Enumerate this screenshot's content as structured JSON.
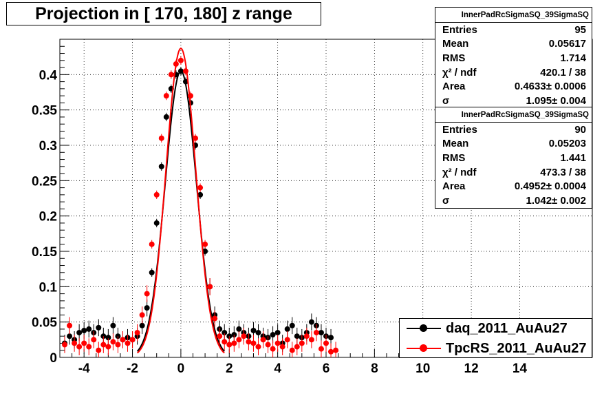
{
  "chart_data": {
    "type": "scatter",
    "title": "Projection in [ 170, 180] z range",
    "xlabel": "",
    "ylabel": "",
    "xlim": [
      -5,
      17
    ],
    "ylim": [
      0,
      0.45
    ],
    "x_ticks": [
      -4,
      -2,
      0,
      2,
      4,
      6,
      8,
      10,
      12,
      14
    ],
    "x_tick_labels": [
      "-4",
      "-2",
      "0",
      "2",
      "4",
      "6",
      "8",
      "10",
      "12",
      "14"
    ],
    "y_ticks": [
      0,
      0.05,
      0.1,
      0.15,
      0.2,
      0.25,
      0.3,
      0.35,
      0.4
    ],
    "y_tick_labels": [
      "0",
      "0.05",
      "0.1",
      "0.15",
      "0.2",
      "0.25",
      "0.3",
      "0.35",
      "0.4"
    ],
    "grid": true,
    "legend_position": "bottom-right",
    "series": [
      {
        "name": "daq_2011_AuAu27",
        "color": "#000000",
        "fit_sigma": 1.095,
        "fit_amplitude": 0.405,
        "x": [
          -4.8,
          -4.6,
          -4.4,
          -4.2,
          -4.0,
          -3.8,
          -3.6,
          -3.4,
          -3.2,
          -3.0,
          -2.8,
          -2.6,
          -2.4,
          -2.2,
          -2.0,
          -1.8,
          -1.6,
          -1.4,
          -1.2,
          -1.0,
          -0.8,
          -0.6,
          -0.4,
          -0.2,
          0.0,
          0.2,
          0.4,
          0.6,
          0.8,
          1.0,
          1.2,
          1.4,
          1.6,
          1.8,
          2.0,
          2.2,
          2.4,
          2.6,
          2.8,
          3.0,
          3.2,
          3.4,
          3.6,
          3.8,
          4.0,
          4.2,
          4.4,
          4.6,
          4.8,
          5.0,
          5.2,
          5.4,
          5.6,
          5.8,
          6.0,
          6.2
        ],
        "y": [
          0.02,
          0.03,
          0.025,
          0.035,
          0.038,
          0.04,
          0.035,
          0.042,
          0.03,
          0.028,
          0.045,
          0.03,
          0.025,
          0.028,
          0.025,
          0.03,
          0.045,
          0.07,
          0.12,
          0.19,
          0.27,
          0.34,
          0.38,
          0.4,
          0.405,
          0.39,
          0.36,
          0.3,
          0.23,
          0.15,
          0.1,
          0.06,
          0.04,
          0.035,
          0.03,
          0.032,
          0.04,
          0.035,
          0.03,
          0.038,
          0.035,
          0.03,
          0.028,
          0.032,
          0.035,
          0.02,
          0.04,
          0.045,
          0.03,
          0.028,
          0.035,
          0.05,
          0.045,
          0.035,
          0.03,
          0.028
        ]
      },
      {
        "name": "TpcRS_2011_AuAu27",
        "color": "#ff0000",
        "fit_sigma": 1.042,
        "fit_amplitude": 0.437,
        "x": [
          -4.8,
          -4.6,
          -4.4,
          -4.2,
          -4.0,
          -3.8,
          -3.6,
          -3.4,
          -3.2,
          -3.0,
          -2.8,
          -2.6,
          -2.4,
          -2.2,
          -2.0,
          -1.8,
          -1.6,
          -1.4,
          -1.2,
          -1.0,
          -0.8,
          -0.6,
          -0.4,
          -0.2,
          0.0,
          0.2,
          0.4,
          0.6,
          0.8,
          1.0,
          1.2,
          1.4,
          1.6,
          1.8,
          2.0,
          2.2,
          2.4,
          2.6,
          2.8,
          3.0,
          3.2,
          3.4,
          3.6,
          3.8,
          4.0,
          4.2,
          4.4,
          4.6,
          4.8,
          5.0,
          5.2,
          5.4,
          5.6,
          5.8,
          6.0,
          6.2,
          6.4
        ],
        "y": [
          0.018,
          0.045,
          0.02,
          0.015,
          0.02,
          0.015,
          0.025,
          0.01,
          0.018,
          0.015,
          0.022,
          0.018,
          0.025,
          0.02,
          0.025,
          0.035,
          0.06,
          0.09,
          0.16,
          0.23,
          0.31,
          0.37,
          0.4,
          0.415,
          0.42,
          0.405,
          0.37,
          0.31,
          0.24,
          0.16,
          0.1,
          0.055,
          0.03,
          0.022,
          0.018,
          0.02,
          0.025,
          0.03,
          0.022,
          0.02,
          0.015,
          0.025,
          0.018,
          0.012,
          0.02,
          0.015,
          0.025,
          0.01,
          0.015,
          0.02,
          0.03,
          0.025,
          0.035,
          0.012,
          0.02,
          0.008,
          0.01
        ]
      }
    ]
  },
  "stats_boxes": [
    {
      "header": "InnerPadRcSigmaSQ_39SigmaSQ",
      "rows": [
        {
          "label": "Entries",
          "value": "95"
        },
        {
          "label": "Mean",
          "value": "0.05617"
        },
        {
          "label": "RMS",
          "value": "1.714"
        },
        {
          "label": "χ² / ndf",
          "value": "420.1 / 38"
        },
        {
          "label": "Area",
          "value": "0.4633± 0.0006"
        },
        {
          "label": "σ",
          "value": "1.095± 0.004"
        }
      ]
    },
    {
      "header": "InnerPadRcSigmaSQ_39SigmaSQ",
      "rows": [
        {
          "label": "Entries",
          "value": "90"
        },
        {
          "label": "Mean",
          "value": "0.05203"
        },
        {
          "label": "RMS",
          "value": "1.441"
        },
        {
          "label": "χ² / ndf",
          "value": "473.3 / 38"
        },
        {
          "label": "Area",
          "value": "0.4952± 0.0004"
        },
        {
          "label": "σ",
          "value": "1.042± 0.002"
        }
      ]
    }
  ],
  "legend": {
    "items": [
      {
        "label": "daq_2011_AuAu27",
        "color": "#000000"
      },
      {
        "label": "TpcRS_2011_AuAu27",
        "color": "#ff0000"
      }
    ]
  }
}
